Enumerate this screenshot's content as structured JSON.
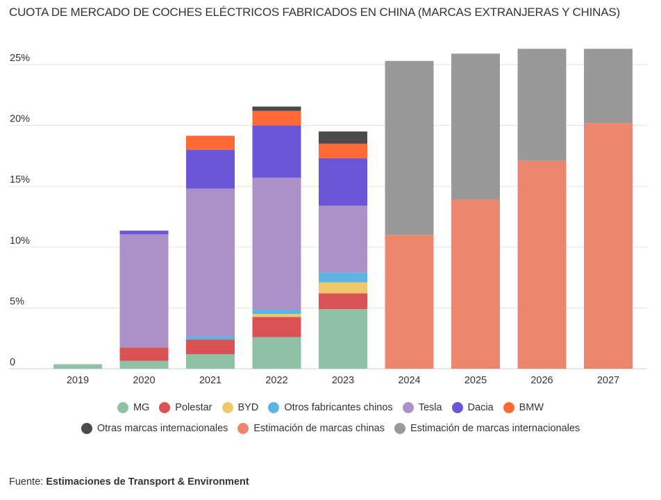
{
  "title": "CUOTA DE MERCADO DE COCHES ELÉCTRICOS FABRICADOS EN CHINA (MARCAS EXTRANJERAS Y CHINAS)",
  "source": {
    "label": "Fuente:",
    "text": "Estimaciones de Transport & Environment"
  },
  "chart_data": {
    "type": "bar",
    "stacked": true,
    "title": "CUOTA DE MERCADO DE COCHES ELÉCTRICOS FABRICADOS EN CHINA (MARCAS EXTRANJERAS Y CHINAS)",
    "xlabel": "",
    "ylabel": "",
    "ylim": [
      0,
      26.5
    ],
    "yticks": [
      0,
      5,
      10,
      15,
      20,
      25
    ],
    "ytick_labels": [
      "0",
      "5%",
      "10%",
      "15%",
      "20%",
      "25%"
    ],
    "grid": true,
    "legend_position": "bottom",
    "categories": [
      "2019",
      "2020",
      "2021",
      "2022",
      "2023",
      "2024",
      "2025",
      "2026",
      "2027"
    ],
    "series": [
      {
        "name": "MG",
        "color": "#8fc1a5",
        "values": [
          0.37,
          0.65,
          1.2,
          2.6,
          4.9,
          0,
          0,
          0,
          0
        ]
      },
      {
        "name": "Polestar",
        "color": "#da5156",
        "values": [
          0,
          1.1,
          1.2,
          1.65,
          1.3,
          0,
          0,
          0,
          0
        ]
      },
      {
        "name": "BYD",
        "color": "#efc86a",
        "values": [
          0,
          0,
          0,
          0.25,
          0.9,
          0,
          0,
          0,
          0
        ]
      },
      {
        "name": "Otros fabricantes chinos",
        "color": "#5db4e2",
        "values": [
          0,
          0,
          0.25,
          0.35,
          0.8,
          0,
          0,
          0,
          0
        ]
      },
      {
        "name": "Tesla",
        "color": "#aa92c7",
        "values": [
          0,
          9.3,
          12.15,
          10.85,
          5.5,
          0,
          0,
          0,
          0
        ]
      },
      {
        "name": "Dacia",
        "color": "#6b55d8",
        "values": [
          0,
          0.3,
          3.2,
          4.3,
          3.9,
          0,
          0,
          0,
          0
        ]
      },
      {
        "name": "BMW",
        "color": "#fd6a35",
        "values": [
          0,
          0,
          1.15,
          1.2,
          1.2,
          0,
          0,
          0,
          0
        ]
      },
      {
        "name": "Otras marcas internacionales",
        "color": "#4a4a4a",
        "values": [
          0,
          0,
          0,
          0.35,
          1.0,
          0,
          0,
          0,
          0
        ]
      },
      {
        "name": "Estimación de marcas chinas",
        "color": "#ec866d",
        "values": [
          0,
          0,
          0,
          0,
          0,
          11.0,
          13.9,
          17.1,
          20.2
        ]
      },
      {
        "name": "Estimación de marcas internacionales",
        "color": "#999999",
        "values": [
          0,
          0,
          0,
          0,
          0,
          14.3,
          12.0,
          9.2,
          6.1
        ]
      }
    ]
  },
  "legend": {
    "row1": [
      0,
      1,
      2,
      3,
      4,
      5,
      6
    ],
    "row2": [
      7,
      8,
      9
    ]
  }
}
